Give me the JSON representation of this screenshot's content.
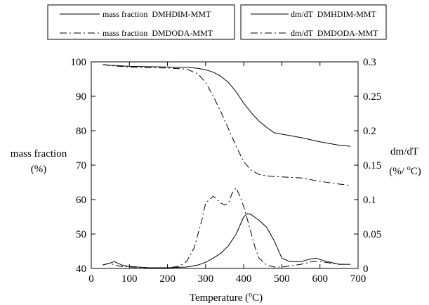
{
  "chart_data": {
    "type": "line",
    "xlabel": "Temperature (°C)",
    "xlabel_parts": {
      "prefix": "Temperature (",
      "sup": "o",
      "suffix": "C)"
    },
    "ylabel_left": {
      "line1": "mass fraction",
      "line2": "(%)"
    },
    "ylabel_right": {
      "line1": "dm/dT",
      "line2_prefix": "(%/ ",
      "line2_sup": "o",
      "line2_suffix": "C)"
    },
    "xlim": [
      0,
      700
    ],
    "ylim_left": [
      40,
      100
    ],
    "ylim_right": [
      0,
      0.3
    ],
    "x_ticks": [
      "0",
      "100",
      "200",
      "300",
      "400",
      "500",
      "600",
      "700"
    ],
    "y_left_ticks": [
      "40",
      "50",
      "60",
      "70",
      "80",
      "90",
      "100"
    ],
    "y_right_ticks": [
      "0",
      "0.05",
      "0.1",
      "0.15",
      "0.2",
      "0.25",
      "0.3"
    ],
    "grid": false,
    "legend": [
      {
        "label": "mass fraction  DMHDIM-MMT",
        "style": "solid"
      },
      {
        "label": "mass fraction  DMDODA-MMT",
        "style": "dashdot"
      },
      {
        "label": "dm/dT  DMHDIM-MMT",
        "style": "solid"
      },
      {
        "label": "dm/dT  DMDODA-MMT",
        "style": "dashdot"
      }
    ],
    "series": [
      {
        "name": "mass fraction  DMHDIM-MMT",
        "axis": "left",
        "style": "solid",
        "x": [
          30,
          50,
          100,
          150,
          200,
          250,
          280,
          300,
          320,
          340,
          360,
          380,
          400,
          420,
          440,
          460,
          480,
          500,
          550,
          600,
          650,
          680
        ],
        "y": [
          99.2,
          99.0,
          98.7,
          98.6,
          98.5,
          98.4,
          98.1,
          97.7,
          97.0,
          95.8,
          94.0,
          91.3,
          88.0,
          85.2,
          82.8,
          81.0,
          79.4,
          79.0,
          78.0,
          76.8,
          75.8,
          75.5
        ]
      },
      {
        "name": "mass fraction  DMDODA-MMT",
        "axis": "left",
        "style": "dashdot",
        "x": [
          30,
          50,
          100,
          150,
          200,
          250,
          280,
          300,
          320,
          340,
          360,
          380,
          400,
          420,
          440,
          460,
          480,
          500,
          550,
          600,
          650,
          680
        ],
        "y": [
          99.2,
          98.9,
          98.5,
          98.3,
          98.2,
          97.9,
          96.5,
          94.0,
          90.0,
          85.5,
          80.5,
          75.5,
          71.0,
          68.5,
          67.3,
          66.9,
          66.7,
          66.6,
          66.3,
          65.3,
          64.5,
          64.1
        ]
      },
      {
        "name": "dm/dT  DMHDIM-MMT",
        "axis": "right",
        "style": "solid",
        "x": [
          30,
          50,
          60,
          80,
          100,
          150,
          200,
          250,
          280,
          300,
          320,
          340,
          360,
          380,
          400,
          410,
          420,
          440,
          460,
          480,
          500,
          520,
          550,
          570,
          590,
          600,
          620,
          650,
          680
        ],
        "y": [
          0.005,
          0.008,
          0.01,
          0.005,
          0.003,
          0.001,
          0.001,
          0.002,
          0.005,
          0.009,
          0.015,
          0.022,
          0.033,
          0.05,
          0.075,
          0.08,
          0.078,
          0.07,
          0.06,
          0.04,
          0.015,
          0.01,
          0.01,
          0.013,
          0.015,
          0.013,
          0.01,
          0.006,
          0.006
        ]
      },
      {
        "name": "dm/dT  DMDODA-MMT",
        "axis": "right",
        "style": "dashdot",
        "x": [
          30,
          50,
          60,
          80,
          100,
          150,
          200,
          230,
          250,
          270,
          290,
          300,
          310,
          320,
          330,
          340,
          350,
          360,
          370,
          380,
          390,
          400,
          410,
          420,
          430,
          440,
          460,
          480,
          500,
          550,
          580,
          600,
          650,
          680
        ],
        "y": [
          0.005,
          0.008,
          0.005,
          0.003,
          0.002,
          0.001,
          0.001,
          0.003,
          0.01,
          0.03,
          0.07,
          0.095,
          0.1,
          0.105,
          0.1,
          0.095,
          0.092,
          0.095,
          0.11,
          0.117,
          0.105,
          0.09,
          0.07,
          0.05,
          0.03,
          0.015,
          0.005,
          0.002,
          0.002,
          0.006,
          0.01,
          0.01,
          0.006,
          0.006
        ]
      }
    ]
  }
}
